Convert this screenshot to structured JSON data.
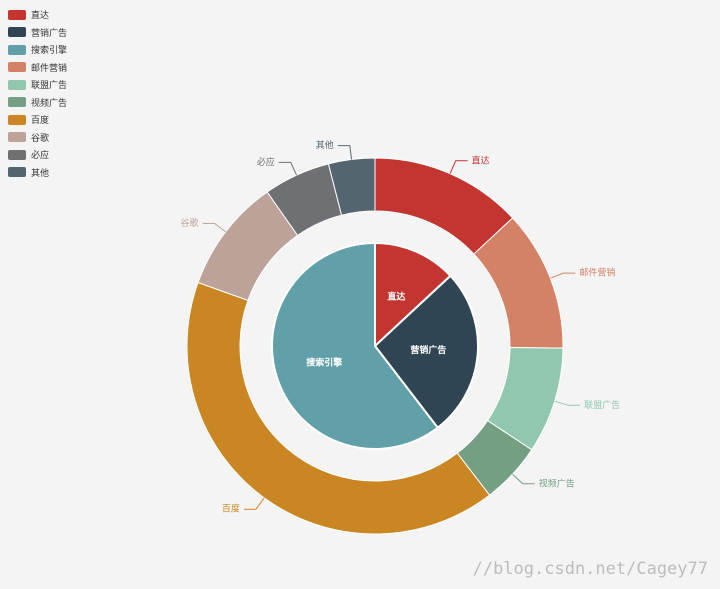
{
  "chart_data": [
    {
      "type": "pie",
      "name": "inner",
      "slices": [
        {
          "label": "直达",
          "value": 335,
          "color": "#c23531",
          "label_position": "inside"
        },
        {
          "label": "营销广告",
          "value": 679,
          "color": "#2f4554",
          "label_position": "inside"
        },
        {
          "label": "搜索引擎",
          "value": 1548,
          "color": "#61a0a8",
          "label_position": "inside"
        }
      ]
    },
    {
      "type": "pie",
      "name": "outer",
      "slices": [
        {
          "label": "直达",
          "value": 335,
          "color": "#c23531"
        },
        {
          "label": "邮件营销",
          "value": 310,
          "color": "#d48265"
        },
        {
          "label": "联盟广告",
          "value": 234,
          "color": "#91c7ae"
        },
        {
          "label": "视频广告",
          "value": 135,
          "color": "#749f83"
        },
        {
          "label": "百度",
          "value": 1048,
          "color": "#ca8622"
        },
        {
          "label": "谷歌",
          "value": 251,
          "color": "#bda29a"
        },
        {
          "label": "必应",
          "value": 147,
          "color": "#6e7074"
        },
        {
          "label": "其他",
          "value": 102,
          "color": "#546570"
        }
      ]
    }
  ],
  "legend": [
    {
      "label": "直达",
      "color": "#c23531"
    },
    {
      "label": "营销广告",
      "color": "#2f4554"
    },
    {
      "label": "搜索引擎",
      "color": "#61a0a8"
    },
    {
      "label": "邮件营销",
      "color": "#d48265"
    },
    {
      "label": "联盟广告",
      "color": "#91c7ae"
    },
    {
      "label": "视频广告",
      "color": "#749f83"
    },
    {
      "label": "百度",
      "color": "#ca8622"
    },
    {
      "label": "谷歌",
      "color": "#bda29a"
    },
    {
      "label": "必应",
      "color": "#6e7074"
    },
    {
      "label": "其他",
      "color": "#546570"
    }
  ],
  "watermark": "//blog.csdn.net/Cagey77"
}
